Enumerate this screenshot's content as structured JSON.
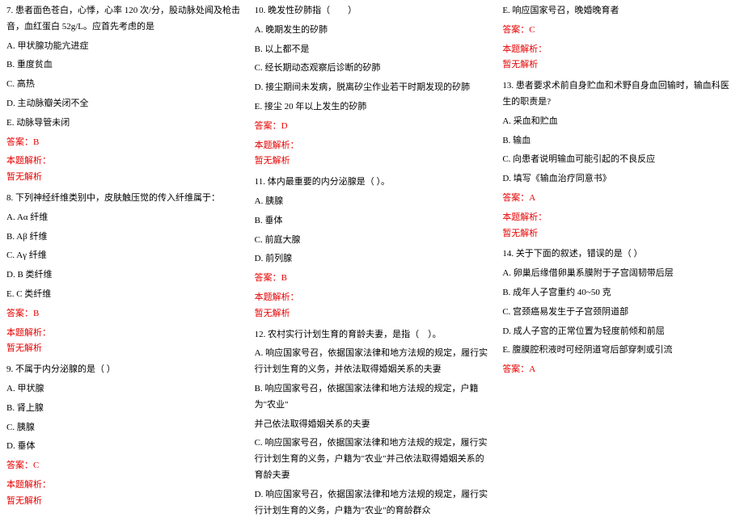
{
  "text_color": "#000000",
  "accent_color": "#e60000",
  "font_family": "SimSun",
  "font_size_pt": 8,
  "columns": 3,
  "strings": {
    "analysis_label": "本题解析：",
    "no_analysis": "暂无解析"
  },
  "fragments": {
    "q12_frag_a": "并己依法取得婚姻关系的夫妻",
    "q12_frag_b": "B. 响应国家号召，依据国家法律和地方法规的规定，户籍为\"农业\""
  },
  "questions": [
    {
      "id": "q7",
      "stem": "7. 患者面色苍白，心悸，心率 120 次/分，股动脉处闻及枪击音，血红蛋白 52g/L。应首先考虑的是",
      "options": [
        "A. 甲状腺功能亢进症",
        "B. 重度贫血",
        "C. 高热",
        "D. 主动脉瓣关闭不全",
        "E. 动脉导管未闭"
      ],
      "answer": "答案：B"
    },
    {
      "id": "q8",
      "stem": "8. 下列神经纤维类别中，皮肤触压觉的传入纤维属于：",
      "options": [
        "A. Aα 纤维",
        "B. Aβ 纤维",
        "C. Aγ 纤维",
        "D. B 类纤维",
        "E. C 类纤维"
      ],
      "answer": "答案：B"
    },
    {
      "id": "q9",
      "stem": "9. 不属于内分泌腺的是（ ）",
      "options": [
        "A. 甲状腺",
        "B. 肾上腺",
        "C. 胰腺",
        "D. 垂体"
      ],
      "answer": "答案：C"
    },
    {
      "id": "q10",
      "stem": "10. 晚发性矽肺指（　　）",
      "options": [
        "A. 晚期发生的矽肺",
        "B. 以上都不是",
        "C. 经长期动态观察后诊断的矽肺",
        "D. 接尘期间未发病，脱离矽尘作业若干时期发现的矽肺",
        "E. 接尘 20 年以上发生的矽肺"
      ],
      "answer": "答案：D"
    },
    {
      "id": "q11",
      "stem": "11. 体内最重要的内分泌腺是（ ）。",
      "options": [
        "A. 胰腺",
        "B. 垂体",
        "C. 前庭大腺",
        "D. 前列腺"
      ],
      "answer": "答案：B"
    },
    {
      "id": "q12",
      "stem": "12. 农村实行计划生育的育龄夫妻，是指（　）。",
      "options_pre": [
        "A. 响应国家号召，依据国家法律和地方法规的规定，履行实行计划生育的义务，并依法取得婚姻关系的夫妻"
      ],
      "options_post": [
        "C. 响应国家号召，依据国家法律和地方法规的规定，履行实行计划生育的义务，户籍为\"农业\"并己依法取得婚姻关系的育龄夫妻",
        "D. 响应国家号召，依据国家法律和地方法规的规定，履行实行计划生育的义务，户籍为\"农业\"的育龄群众",
        "E. 响应国家号召，晚婚晚育者"
      ],
      "answer": "答案：C"
    },
    {
      "id": "q13",
      "stem": "13. 患者要求术前自身贮血和术野自身血回输时，输血科医生的职责是?",
      "options": [
        "A. 采血和贮血",
        "B. 输血",
        "C. 向患者说明输血可能引起的不良反应",
        "D. 填写《输血治疗同意书》"
      ],
      "answer": "答案：A"
    },
    {
      "id": "q14",
      "stem": "14. 关于下面的叙述，错误的是（ ）",
      "options": [
        "A. 卵巢后缘借卵巢系膜附于子宫阔韧带后层",
        "B. 成年人子宫重约 40~50 克",
        "C. 宫颈癌易发生于子宫颈阴道部",
        "D. 成人子宫的正常位置为轻度前倾和前屈",
        "E. 腹膜腔积液时可经阴道穹后部穿刺或引流"
      ],
      "answer": "答案：A"
    }
  ]
}
